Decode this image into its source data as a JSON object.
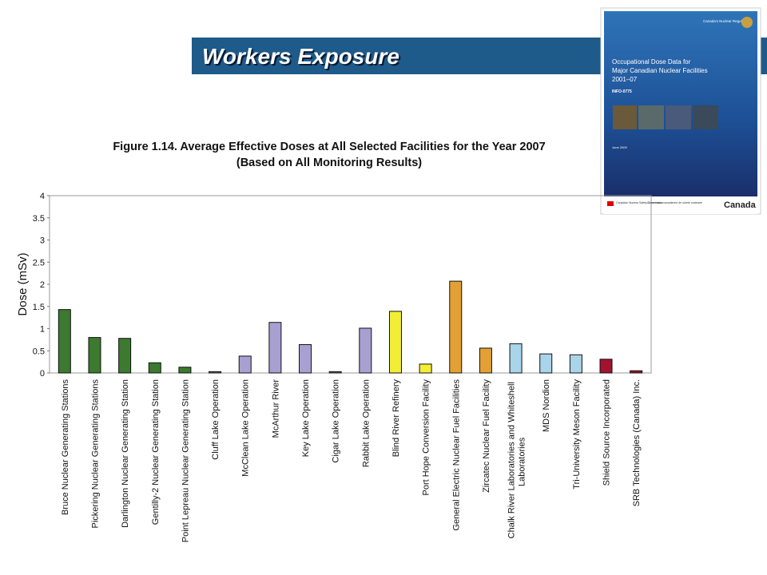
{
  "header": {
    "title": "Workers Exposure"
  },
  "cover": {
    "agency": "Canada's Nuclear Regulator",
    "title": [
      "Occupational Dose Data for",
      "Major Canadian Nuclear Facilities",
      "2001–07"
    ],
    "code": "INFO-0775",
    "date": "June 2009",
    "footer": [
      "Canadian Nuclear Safety Commission",
      "Commission canadienne de sûreté nucléaire"
    ],
    "wordmark": "Canada"
  },
  "chart_data": {
    "type": "bar",
    "title": [
      "Figure 1.14. Average Effective Doses at All Selected Facilities for the Year 2007",
      "(Based on All Monitoring Results)"
    ],
    "y_label": "Dose (mSv)",
    "categories": [
      "Bruce Nuclear Generating Stations",
      "Pickering Nuclear Generating Stations",
      "Darlington Nuclear Generating Station",
      "Gentilly-2 Nuclear Generating Station",
      "Point Lepreau Nuclear Generating Station",
      "Cluff Lake Operation",
      "McClean Lake Operation",
      "McArthur River",
      "Key Lake Operation",
      "Cigar Lake Operation",
      "Rabbit Lake Operation",
      "Blind River Refinery",
      "Port Hope Conversion Facility",
      "General Electric Nuclear Fuel Facilities",
      "Zircatec Nuclear Fuel Facility",
      "Chalk River Laboratories and Whiteshell Laboratories",
      "MDS Nordion",
      "Tri-University Meson Facility",
      "Shield Source Incorporated",
      "SRB Technologies (Canada) Inc."
    ],
    "values": [
      1.43,
      0.8,
      0.78,
      0.23,
      0.13,
      0.03,
      0.38,
      1.14,
      0.64,
      0.03,
      1.01,
      1.39,
      0.2,
      2.07,
      0.56,
      0.66,
      0.43,
      0.41,
      0.31,
      0.05
    ],
    "colors": [
      "#3b7a2f",
      "#3b7a2f",
      "#3b7a2f",
      "#3b7a2f",
      "#3b7a2f",
      "#6a6290",
      "#a9a0d2",
      "#a9a0d2",
      "#a9a0d2",
      "#6a6290",
      "#a9a0d2",
      "#f2ee35",
      "#f2ee35",
      "#e3a035",
      "#e3a035",
      "#a9d4ea",
      "#a9d4ea",
      "#a9d4ea",
      "#a3122e",
      "#a3122e"
    ],
    "ylim": [
      0,
      4
    ],
    "yticks": [
      0,
      0.5,
      1,
      1.5,
      2,
      2.5,
      3,
      3.5,
      4
    ],
    "grid": false
  }
}
